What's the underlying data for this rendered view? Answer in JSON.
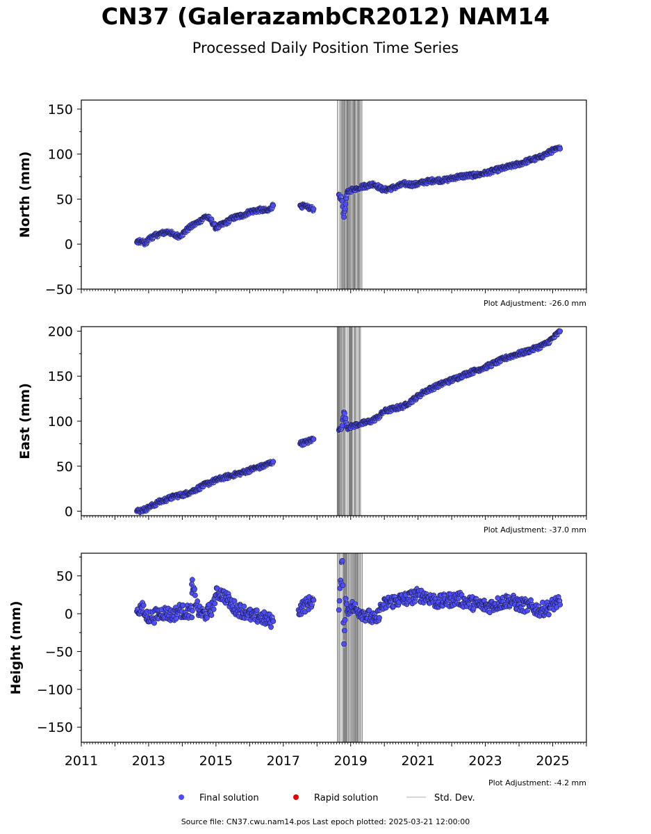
{
  "title": "CN37 (GalerazambCR2012) NAM14",
  "subtitle": "Processed Daily Position Time Series",
  "source_text": "Source file: CN37.cwu.nam14.pos  Last epoch plotted: 2025-03-21 12:00:00",
  "legend": {
    "final_label": "Final solution",
    "rapid_label": "Rapid solution",
    "stddev_label": "Std. Dev."
  },
  "colors": {
    "final": "#4d4dff",
    "rapid": "#e00000",
    "stddev": "#c8c8c8",
    "stddev_dense": "#666666",
    "edge": "#1a1a3a"
  },
  "chart_data": [
    {
      "type": "scatter",
      "ylabel": "North (mm)",
      "adjustment": "Plot Adjustment: -26.0 mm",
      "xlim": [
        2011,
        2026
      ],
      "ylim": [
        -50,
        160
      ],
      "yticks": [
        -50,
        0,
        50,
        100,
        150
      ],
      "ytick_labels": [
        "−50",
        "0",
        "50",
        "100",
        "150"
      ],
      "xtick_labels_shown": false,
      "stddev_band": [
        2018.6,
        2019.35
      ],
      "series": [
        {
          "name": "Final solution",
          "x": [
            2012.65,
            2012.8,
            2012.9,
            2013.05,
            2013.3,
            2013.6,
            2013.75,
            2013.9,
            2014.0,
            2014.2,
            2014.5,
            2014.7,
            2014.85,
            2015.0,
            2015.3,
            2015.5,
            2015.8,
            2016.0,
            2016.3,
            2016.55,
            2016.7,
            2017.5,
            2017.7,
            2017.9,
            2018.65,
            2018.75,
            2018.8,
            2018.9,
            2019.0,
            2019.2,
            2019.35,
            2019.5,
            2019.7,
            2019.85,
            2020.0,
            2020.3,
            2020.6,
            2020.9,
            2021.2,
            2021.5,
            2021.8,
            2022.0,
            2022.2,
            2022.5,
            2022.8,
            2023.0,
            2023.3,
            2023.6,
            2023.8,
            2024.0,
            2024.3,
            2024.6,
            2024.8,
            2025.0,
            2025.22
          ],
          "y": [
            2,
            3,
            1,
            7,
            11,
            14,
            10,
            9,
            11,
            18,
            25,
            31,
            27,
            18,
            24,
            29,
            32,
            36,
            38,
            37,
            43,
            43,
            41,
            39,
            55,
            48,
            30,
            58,
            60,
            62,
            64,
            65,
            67,
            63,
            60,
            63,
            67,
            66,
            69,
            71,
            71,
            73,
            75,
            76,
            77,
            79,
            82,
            85,
            87,
            89,
            93,
            96,
            100,
            104,
            106
          ]
        }
      ]
    },
    {
      "type": "scatter",
      "ylabel": "East (mm)",
      "adjustment": "Plot Adjustment: -37.0 mm",
      "xlim": [
        2011,
        2026
      ],
      "ylim": [
        -5,
        205
      ],
      "yticks": [
        0,
        50,
        100,
        150,
        200
      ],
      "ytick_labels": [
        "0",
        "50",
        "100",
        "150",
        "200"
      ],
      "xtick_labels_shown": false,
      "stddev_band": [
        2018.6,
        2019.35
      ],
      "series": [
        {
          "name": "Final solution",
          "x": [
            2012.65,
            2012.8,
            2012.9,
            2013.05,
            2013.3,
            2013.6,
            2013.8,
            2014.0,
            2014.3,
            2014.6,
            2014.9,
            2015.2,
            2015.5,
            2015.8,
            2016.1,
            2016.4,
            2016.7,
            2017.5,
            2017.7,
            2017.9,
            2018.65,
            2018.75,
            2018.8,
            2018.9,
            2019.1,
            2019.3,
            2019.6,
            2019.8,
            2020.0,
            2020.3,
            2020.6,
            2020.9,
            2021.2,
            2021.5,
            2021.8,
            2022.1,
            2022.4,
            2022.7,
            2023.0,
            2023.3,
            2023.6,
            2023.9,
            2024.2,
            2024.5,
            2024.8,
            2025.0,
            2025.22
          ],
          "y": [
            0,
            1,
            2,
            5,
            10,
            14,
            17,
            18,
            22,
            28,
            33,
            37,
            40,
            43,
            47,
            50,
            55,
            75,
            77,
            80,
            90,
            95,
            110,
            93,
            95,
            97,
            100,
            104,
            111,
            114,
            117,
            125,
            133,
            138,
            143,
            147,
            152,
            156,
            160,
            165,
            170,
            174,
            177,
            181,
            186,
            192,
            200
          ]
        }
      ]
    },
    {
      "type": "scatter",
      "ylabel": "Height (mm)",
      "adjustment": "Plot Adjustment: -4.2 mm",
      "xlim": [
        2011,
        2026
      ],
      "ylim": [
        -170,
        80
      ],
      "yticks": [
        -150,
        -100,
        -50,
        0,
        50
      ],
      "ytick_labels": [
        "−150",
        "−100",
        "−50",
        "0",
        "50"
      ],
      "xticks": [
        2011,
        2013,
        2015,
        2017,
        2019,
        2021,
        2023,
        2025
      ],
      "xtick_labels": [
        "2011",
        "2013",
        "2015",
        "2017",
        "2019",
        "2021",
        "2023",
        "2025"
      ],
      "xtick_labels_shown": true,
      "stddev_band": [
        2018.6,
        2019.35
      ],
      "series": [
        {
          "name": "Final solution",
          "x": [
            2012.65,
            2012.8,
            2012.9,
            2013.1,
            2013.3,
            2013.5,
            2013.7,
            2013.9,
            2014.1,
            2014.3,
            2014.28,
            2014.5,
            2014.7,
            2014.9,
            2015.0,
            2015.1,
            2015.3,
            2015.5,
            2015.7,
            2015.9,
            2016.1,
            2016.3,
            2016.5,
            2016.7,
            2017.45,
            2017.6,
            2017.8,
            2017.9,
            2018.65,
            2018.75,
            2018.8,
            2018.85,
            2018.9,
            2019.0,
            2019.2,
            2019.4,
            2019.6,
            2019.75,
            2019.9,
            2020.1,
            2020.4,
            2020.7,
            2021.0,
            2021.3,
            2021.6,
            2021.9,
            2022.2,
            2022.5,
            2022.8,
            2023.1,
            2023.4,
            2023.7,
            2024.0,
            2024.3,
            2024.6,
            2024.9,
            2025.1,
            2025.22
          ],
          "y": [
            3,
            8,
            -2,
            -5,
            0,
            2,
            -3,
            5,
            2,
            4,
            39,
            1,
            0,
            8,
            25,
            28,
            22,
            10,
            5,
            2,
            -5,
            -3,
            -8,
            -10,
            5,
            10,
            15,
            18,
            5,
            70,
            -40,
            20,
            3,
            10,
            5,
            0,
            -5,
            -10,
            8,
            15,
            18,
            20,
            25,
            22,
            15,
            18,
            20,
            15,
            12,
            10,
            14,
            18,
            12,
            10,
            5,
            8,
            15,
            12
          ]
        },
        {
          "name": "Rapid solution",
          "x": [],
          "y": []
        }
      ]
    }
  ]
}
